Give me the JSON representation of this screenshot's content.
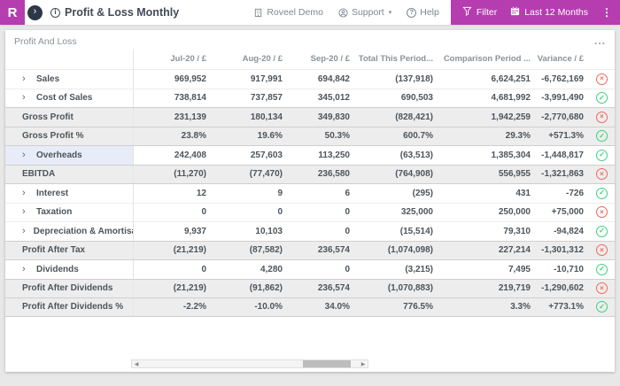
{
  "header": {
    "logo_letter": "R",
    "back_chevron": "›",
    "info_glyph": "i",
    "title": "Profit & Loss Monthly",
    "account_label": "Roveel Demo",
    "support_label": "Support",
    "help_label": "Help",
    "help_glyph": "?",
    "filter_label": "Filter",
    "period_label": "Last 12 Months"
  },
  "card": {
    "title": "Profit And Loss",
    "menu_label": "..."
  },
  "table": {
    "columns": [
      "Jul-20 / £",
      "Aug-20 / £",
      "Sep-20 / £",
      "Total This Period...",
      "Comparison Period ...",
      "Variance / £"
    ],
    "rows": [
      {
        "label": "Sales",
        "expandable": true,
        "summary": false,
        "highlight": false,
        "values": [
          "969,952",
          "917,991",
          "694,842",
          "(137,918)",
          "6,624,251",
          "-6,762,169"
        ],
        "status": "negative"
      },
      {
        "label": "Cost of Sales",
        "expandable": true,
        "summary": false,
        "highlight": false,
        "values": [
          "738,814",
          "737,857",
          "345,012",
          "690,503",
          "4,681,992",
          "-3,991,490"
        ],
        "status": "positive"
      },
      {
        "label": "Gross Profit",
        "expandable": false,
        "summary": true,
        "highlight": false,
        "values": [
          "231,139",
          "180,134",
          "349,830",
          "(828,421)",
          "1,942,259",
          "-2,770,680"
        ],
        "status": "negative"
      },
      {
        "label": "Gross Profit %",
        "expandable": false,
        "summary": true,
        "highlight": false,
        "values": [
          "23.8%",
          "19.6%",
          "50.3%",
          "600.7%",
          "29.3%",
          "+571.3%"
        ],
        "status": "positive"
      },
      {
        "label": "Overheads",
        "expandable": true,
        "summary": false,
        "highlight": true,
        "values": [
          "242,408",
          "257,603",
          "113,250",
          "(63,513)",
          "1,385,304",
          "-1,448,817"
        ],
        "status": "positive"
      },
      {
        "label": "EBITDA",
        "expandable": false,
        "summary": true,
        "highlight": false,
        "values": [
          "(11,270)",
          "(77,470)",
          "236,580",
          "(764,908)",
          "556,955",
          "-1,321,863"
        ],
        "status": "negative"
      },
      {
        "label": "Interest",
        "expandable": true,
        "summary": false,
        "highlight": false,
        "values": [
          "12",
          "9",
          "6",
          "(295)",
          "431",
          "-726"
        ],
        "status": "positive"
      },
      {
        "label": "Taxation",
        "expandable": true,
        "summary": false,
        "highlight": false,
        "values": [
          "0",
          "0",
          "0",
          "325,000",
          "250,000",
          "+75,000"
        ],
        "status": "negative"
      },
      {
        "label": "Depreciation & Amortisation",
        "expandable": true,
        "summary": false,
        "highlight": false,
        "values": [
          "9,937",
          "10,103",
          "0",
          "(15,514)",
          "79,310",
          "-94,824"
        ],
        "status": "positive"
      },
      {
        "label": "Profit After Tax",
        "expandable": false,
        "summary": true,
        "highlight": false,
        "values": [
          "(21,219)",
          "(87,582)",
          "236,574",
          "(1,074,098)",
          "227,214",
          "-1,301,312"
        ],
        "status": "negative"
      },
      {
        "label": "Dividends",
        "expandable": true,
        "summary": false,
        "highlight": false,
        "values": [
          "0",
          "4,280",
          "0",
          "(3,215)",
          "7,495",
          "-10,710"
        ],
        "status": "positive"
      },
      {
        "label": "Profit After Dividends",
        "expandable": false,
        "summary": true,
        "highlight": false,
        "values": [
          "(21,219)",
          "(91,862)",
          "236,574",
          "(1,070,883)",
          "219,719",
          "-1,290,602"
        ],
        "status": "negative"
      },
      {
        "label": "Profit After Dividends %",
        "expandable": false,
        "summary": true,
        "highlight": false,
        "values": [
          "-2.2%",
          "-10.0%",
          "34.0%",
          "776.5%",
          "3.3%",
          "+773.1%"
        ],
        "status": "positive"
      }
    ]
  },
  "status_glyphs": {
    "positive": "✓",
    "negative": "×"
  },
  "colors": {
    "brand_magenta": "#b53db0",
    "navy": "#2c3848",
    "status_positive": "#3fd07f",
    "status_negative": "#f0685c",
    "summary_row_bg": "#ededed",
    "highlight_cell_bg": "#e7ecf8",
    "page_bg": "#e8e8e8"
  }
}
